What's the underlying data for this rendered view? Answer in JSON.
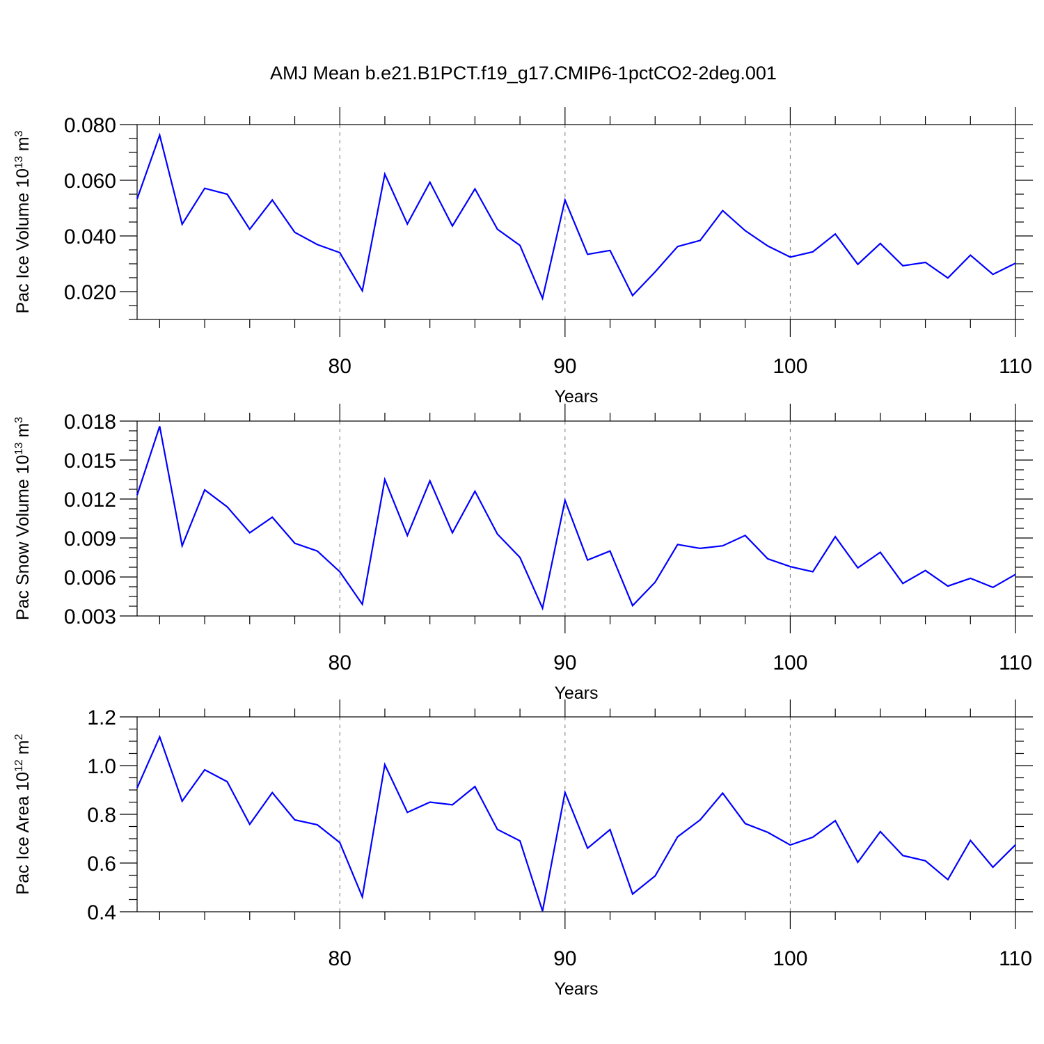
{
  "figure": {
    "title": "AMJ Mean b.e21.B1PCT.f19_g17.CMIP6-1pctCO2-2deg.001"
  },
  "colors": {
    "line": "#0000ff",
    "axis": "#000000",
    "grid": "#777777"
  },
  "chart_data": [
    {
      "type": "line",
      "title": "",
      "xlabel": "Years",
      "ylabel": "Pac Ice Volume 10",
      "ylabel_exponent": "13",
      "ylabel_unit": "m",
      "ylabel_unit_exponent": "3",
      "xlim": [
        71,
        110
      ],
      "ylim": [
        0.01,
        0.08
      ],
      "xticks": [
        80,
        90,
        100,
        110
      ],
      "xtick_labels": [
        "80",
        "90",
        "100",
        "110"
      ],
      "yticks": [
        0.02,
        0.04,
        0.06,
        0.08
      ],
      "ytick_labels": [
        "0.020",
        "0.040",
        "0.060",
        "0.080"
      ],
      "grid": "vertical dashed at major x ticks",
      "series": [
        {
          "x": [
            71,
            72,
            73,
            74,
            75,
            76,
            77,
            78,
            79,
            80,
            81,
            82,
            83,
            84,
            85,
            86,
            87,
            88,
            89,
            90,
            91,
            92,
            93,
            94,
            95,
            96,
            97,
            98,
            99,
            100,
            101,
            102,
            103,
            104,
            105,
            106,
            107,
            108,
            109,
            110
          ],
          "values": [
            0.0533,
            0.0762,
            0.0442,
            0.0571,
            0.055,
            0.0424,
            0.0529,
            0.0413,
            0.0369,
            0.034,
            0.0203,
            0.0622,
            0.0443,
            0.0593,
            0.0436,
            0.0569,
            0.0424,
            0.0366,
            0.0176,
            0.0529,
            0.0334,
            0.0348,
            0.0186,
            0.0271,
            0.0362,
            0.0384,
            0.0491,
            0.0419,
            0.0364,
            0.0324,
            0.0343,
            0.0407,
            0.0298,
            0.0373,
            0.0293,
            0.0305,
            0.0249,
            0.0331,
            0.0262,
            0.0302
          ]
        }
      ]
    },
    {
      "type": "line",
      "title": "",
      "xlabel": "Years",
      "ylabel": "Pac Snow Volume 10",
      "ylabel_exponent": "13",
      "ylabel_unit": "m",
      "ylabel_unit_exponent": "3",
      "xlim": [
        71,
        110
      ],
      "ylim": [
        0.003,
        0.018
      ],
      "xticks": [
        80,
        90,
        100,
        110
      ],
      "xtick_labels": [
        "80",
        "90",
        "100",
        "110"
      ],
      "yticks": [
        0.003,
        0.006,
        0.009,
        0.012,
        0.015,
        0.018
      ],
      "ytick_labels": [
        "0.003",
        "0.006",
        "0.009",
        "0.012",
        "0.015",
        "0.018"
      ],
      "grid": "vertical dashed at major x ticks",
      "series": [
        {
          "x": [
            71,
            72,
            73,
            74,
            75,
            76,
            77,
            78,
            79,
            80,
            81,
            82,
            83,
            84,
            85,
            86,
            87,
            88,
            89,
            90,
            91,
            92,
            93,
            94,
            95,
            96,
            97,
            98,
            99,
            100,
            101,
            102,
            103,
            104,
            105,
            106,
            107,
            108,
            109,
            110
          ],
          "values": [
            0.0123,
            0.0176,
            0.0084,
            0.0127,
            0.0114,
            0.0094,
            0.0106,
            0.0086,
            0.008,
            0.0064,
            0.0039,
            0.0135,
            0.0092,
            0.0134,
            0.0094,
            0.0126,
            0.0093,
            0.0075,
            0.0036,
            0.0119,
            0.0073,
            0.008,
            0.0038,
            0.0056,
            0.0085,
            0.0082,
            0.0084,
            0.0092,
            0.0074,
            0.0068,
            0.0064,
            0.0091,
            0.0067,
            0.0079,
            0.0055,
            0.0065,
            0.0053,
            0.0059,
            0.0052,
            0.0062
          ]
        }
      ]
    },
    {
      "type": "line",
      "title": "",
      "xlabel": "Years",
      "ylabel": "Pac Ice Area 10",
      "ylabel_exponent": "12",
      "ylabel_unit": "m",
      "ylabel_unit_exponent": "2",
      "xlim": [
        71,
        110
      ],
      "ylim": [
        0.4,
        1.2
      ],
      "xticks": [
        80,
        90,
        100,
        110
      ],
      "xtick_labels": [
        "80",
        "90",
        "100",
        "110"
      ],
      "yticks": [
        0.4,
        0.6,
        0.8,
        1.0,
        1.2
      ],
      "ytick_labels": [
        "0.4",
        "0.6",
        "0.8",
        "1.0",
        "1.2"
      ],
      "grid": "vertical dashed at major x ticks",
      "series": [
        {
          "x": [
            71,
            72,
            73,
            74,
            75,
            76,
            77,
            78,
            79,
            80,
            81,
            82,
            83,
            84,
            85,
            86,
            87,
            88,
            89,
            90,
            91,
            92,
            93,
            94,
            95,
            96,
            97,
            98,
            99,
            100,
            101,
            102,
            103,
            104,
            105,
            106,
            107,
            108,
            109,
            110
          ],
          "values": [
            0.908,
            1.118,
            0.854,
            0.983,
            0.934,
            0.759,
            0.889,
            0.777,
            0.757,
            0.684,
            0.461,
            1.004,
            0.808,
            0.85,
            0.839,
            0.914,
            0.738,
            0.691,
            0.403,
            0.89,
            0.661,
            0.737,
            0.473,
            0.547,
            0.708,
            0.777,
            0.887,
            0.762,
            0.726,
            0.674,
            0.706,
            0.774,
            0.603,
            0.729,
            0.631,
            0.609,
            0.532,
            0.693,
            0.583,
            0.675
          ]
        }
      ]
    }
  ]
}
